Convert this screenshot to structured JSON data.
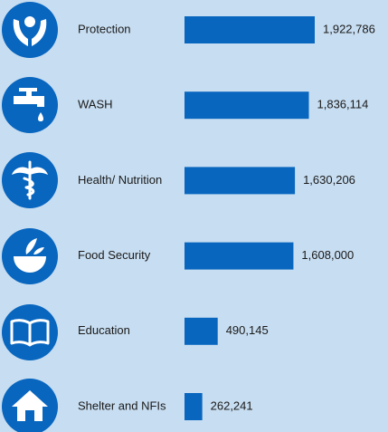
{
  "chart_data": {
    "type": "bar",
    "orientation": "horizontal",
    "categories": [
      "Protection",
      "WASH",
      "Health/ Nutrition",
      "Food Security",
      "Education",
      "Shelter and NFIs"
    ],
    "values": [
      1922786,
      1836114,
      1630206,
      1608000,
      490145,
      262241
    ],
    "value_labels": [
      "1,922,786",
      "1,836,114",
      "1,630,206",
      "1,608,000",
      "490,145",
      "262,241"
    ],
    "color": "#0866bf"
  }
}
